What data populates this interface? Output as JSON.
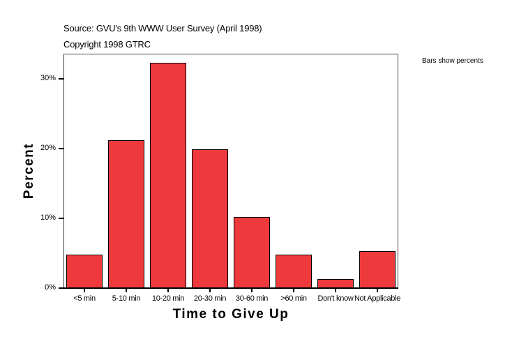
{
  "header": {
    "source": "Source: GVU's 9th WWW User Survey (April 1998)",
    "copyright": "Copyright 1998 GTRC",
    "note": "Bars show percents"
  },
  "colors": {
    "bar": "#ee3a3c",
    "frame": "#444444"
  },
  "chart_data": {
    "type": "bar",
    "title": "Source: GVU's 9th WWW User Survey (April 1998)",
    "subtitle": "Copyright 1998 GTRC",
    "annotation": "Bars show percents",
    "xlabel": "Time to Give Up",
    "ylabel": "Percent",
    "categories": [
      "<5 min",
      "5-10 min",
      "10-20 min",
      "20-30 min",
      "30-60 min",
      ">60 min",
      "Don't know",
      "Not Applicable"
    ],
    "values": [
      4.8,
      21.2,
      32.3,
      19.9,
      10.2,
      4.8,
      1.3,
      5.3
    ],
    "yticks": [
      "0%",
      "10%",
      "20%",
      "30%"
    ],
    "ylim": [
      0,
      30
    ],
    "grid": false,
    "legend": "none"
  }
}
